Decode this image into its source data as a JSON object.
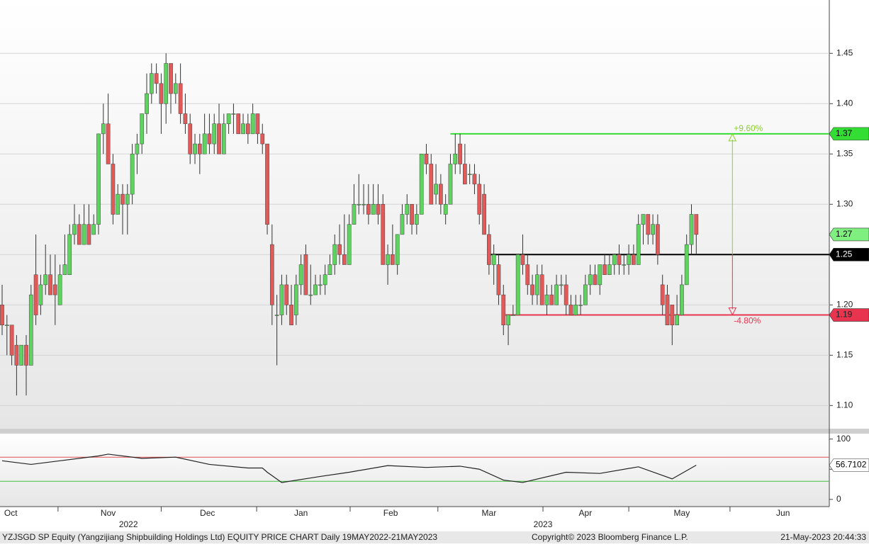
{
  "chart_data": [
    {
      "type": "candlestick",
      "footer_left": "YZJSGD SP Equity (Yangzijiang Shipbuilding Holdings Ltd) EQUITY PRICE CHART  Daily 19MAY2022-21MAY2023",
      "footer_center": "Copyright© 2023 Bloomberg Finance L.P.",
      "footer_right": "21-May-2023 20:44:33",
      "xlim": [
        -0.44,
        171.6
      ],
      "months": [
        {
          "value": 1.8,
          "label": "Oct"
        },
        {
          "value": 22,
          "label": "Nov"
        },
        {
          "value": 42.6,
          "label": "Dec"
        },
        {
          "value": 62,
          "label": "Jan"
        },
        {
          "value": 80.6,
          "label": "Feb"
        },
        {
          "value": 101,
          "label": "Mar"
        },
        {
          "value": 121,
          "label": "Apr"
        },
        {
          "value": 141,
          "label": "May"
        },
        {
          "value": 162,
          "label": "Jun"
        }
      ],
      "years": [
        {
          "value": 26.2,
          "label": "2022"
        },
        {
          "value": 112.2,
          "label": "2023"
        }
      ],
      "month_boundaries": [
        11.6,
        33,
        52.8,
        72.2,
        90.4,
        112.2,
        130,
        151
      ],
      "ylim": [
        1.077,
        1.503
      ],
      "yticks": [
        {
          "value": 1.1,
          "label": "1.10"
        },
        1.15,
        {
          "value": 1.2,
          "label": "1.20"
        },
        1.25,
        {
          "value": 1.3,
          "label": "1.30"
        },
        1.35,
        {
          "value": 1.4,
          "label": "1.40"
        },
        1.45
      ],
      "grid": true,
      "up_color": "#5fd35f",
      "down_color": "#e05a5a",
      "open": [
        1.2,
        1.18,
        1.18,
        1.16,
        1.14,
        1.16,
        1.14,
        1.23,
        1.2,
        1.22,
        1.23,
        1.22,
        1.2,
        1.23,
        1.23,
        1.27,
        1.28,
        1.26,
        1.28,
        1.27,
        1.28,
        1.37,
        1.38,
        1.34,
        1.29,
        1.31,
        1.3,
        1.31,
        1.35,
        1.36,
        1.39,
        1.41,
        1.43,
        1.42,
        1.4,
        1.44,
        1.41,
        1.42,
        1.39,
        1.38,
        1.35,
        1.36,
        1.35,
        1.37,
        1.36,
        1.38,
        1.35,
        1.38,
        1.39,
        1.39,
        1.37,
        1.38,
        1.37,
        1.39,
        1.37,
        1.36,
        1.26,
        1.19,
        1.19,
        1.22,
        1.2,
        1.19,
        1.22,
        1.25,
        1.21,
        1.21,
        1.22,
        1.22,
        1.23,
        1.24,
        1.26,
        1.25,
        1.24,
        1.28,
        1.3,
        1.3,
        1.3,
        1.29,
        1.3,
        1.3,
        1.24,
        1.25,
        1.24,
        1.27,
        1.29,
        1.3,
        1.28,
        1.29,
        1.35,
        1.34,
        1.31,
        1.32,
        1.29,
        1.3,
        1.34,
        1.36,
        1.34,
        1.33,
        1.33,
        1.32,
        1.31,
        1.27,
        1.24,
        1.24,
        1.21,
        1.18,
        1.19,
        1.19,
        1.25,
        1.24,
        1.22,
        1.21,
        1.23,
        1.2,
        1.21,
        1.2,
        1.22,
        1.22,
        1.2,
        1.19,
        1.2,
        1.2,
        1.22,
        1.23,
        1.22,
        1.24,
        1.23,
        1.24,
        1.25,
        1.24,
        1.24,
        1.25,
        1.24,
        1.28,
        1.29,
        1.27,
        1.28,
        1.22,
        1.21,
        1.2,
        1.18,
        1.19,
        1.22,
        1.26,
        1.29
      ],
      "high": [
        1.22,
        1.19,
        1.18,
        1.17,
        1.16,
        1.17,
        1.22,
        1.27,
        1.23,
        1.26,
        1.25,
        1.25,
        1.24,
        1.27,
        1.28,
        1.3,
        1.29,
        1.3,
        1.3,
        1.29,
        1.37,
        1.4,
        1.41,
        1.35,
        1.32,
        1.32,
        1.32,
        1.36,
        1.37,
        1.39,
        1.43,
        1.44,
        1.44,
        1.43,
        1.45,
        1.44,
        1.43,
        1.44,
        1.41,
        1.39,
        1.37,
        1.37,
        1.39,
        1.39,
        1.39,
        1.4,
        1.39,
        1.39,
        1.4,
        1.39,
        1.39,
        1.39,
        1.4,
        1.39,
        1.38,
        1.36,
        1.28,
        1.21,
        1.23,
        1.23,
        1.22,
        1.23,
        1.25,
        1.26,
        1.24,
        1.23,
        1.23,
        1.24,
        1.25,
        1.27,
        1.28,
        1.29,
        1.29,
        1.32,
        1.33,
        1.32,
        1.32,
        1.32,
        1.32,
        1.31,
        1.26,
        1.28,
        1.27,
        1.3,
        1.31,
        1.3,
        1.3,
        1.35,
        1.36,
        1.35,
        1.34,
        1.33,
        1.31,
        1.35,
        1.37,
        1.37,
        1.36,
        1.34,
        1.34,
        1.33,
        1.32,
        1.28,
        1.26,
        1.25,
        1.22,
        1.19,
        1.2,
        1.25,
        1.27,
        1.25,
        1.23,
        1.24,
        1.24,
        1.22,
        1.22,
        1.23,
        1.23,
        1.23,
        1.21,
        1.21,
        1.21,
        1.23,
        1.24,
        1.24,
        1.24,
        1.25,
        1.25,
        1.25,
        1.26,
        1.25,
        1.26,
        1.26,
        1.29,
        1.29,
        1.29,
        1.29,
        1.29,
        1.23,
        1.22,
        1.2,
        1.21,
        1.23,
        1.27,
        1.3,
        1.29
      ],
      "low": [
        1.17,
        1.15,
        1.14,
        1.11,
        1.14,
        1.11,
        1.14,
        1.18,
        1.19,
        1.21,
        1.21,
        1.18,
        1.2,
        1.23,
        1.23,
        1.26,
        1.26,
        1.26,
        1.26,
        1.27,
        1.27,
        1.35,
        1.34,
        1.28,
        1.29,
        1.27,
        1.27,
        1.3,
        1.33,
        1.35,
        1.37,
        1.4,
        1.41,
        1.37,
        1.38,
        1.39,
        1.4,
        1.38,
        1.37,
        1.34,
        1.34,
        1.33,
        1.35,
        1.35,
        1.35,
        1.35,
        1.35,
        1.37,
        1.37,
        1.37,
        1.37,
        1.36,
        1.37,
        1.36,
        1.35,
        1.27,
        1.18,
        1.14,
        1.18,
        1.19,
        1.18,
        1.18,
        1.21,
        1.21,
        1.2,
        1.21,
        1.21,
        1.21,
        1.23,
        1.23,
        1.24,
        1.24,
        1.24,
        1.28,
        1.29,
        1.29,
        1.28,
        1.29,
        1.28,
        1.24,
        1.22,
        1.24,
        1.23,
        1.27,
        1.28,
        1.27,
        1.27,
        1.29,
        1.33,
        1.3,
        1.3,
        1.29,
        1.28,
        1.3,
        1.33,
        1.33,
        1.32,
        1.32,
        1.31,
        1.28,
        1.27,
        1.23,
        1.22,
        1.2,
        1.17,
        1.16,
        1.19,
        1.19,
        1.23,
        1.21,
        1.2,
        1.2,
        1.2,
        1.19,
        1.2,
        1.2,
        1.21,
        1.19,
        1.19,
        1.19,
        1.19,
        1.2,
        1.21,
        1.22,
        1.21,
        1.23,
        1.23,
        1.23,
        1.23,
        1.23,
        1.23,
        1.24,
        1.24,
        1.26,
        1.26,
        1.26,
        1.24,
        1.19,
        1.18,
        1.16,
        1.18,
        1.19,
        1.22,
        1.25,
        1.25
      ],
      "close": [
        1.18,
        1.18,
        1.15,
        1.14,
        1.16,
        1.14,
        1.21,
        1.19,
        1.22,
        1.23,
        1.21,
        1.21,
        1.23,
        1.24,
        1.27,
        1.28,
        1.26,
        1.28,
        1.26,
        1.28,
        1.37,
        1.38,
        1.34,
        1.29,
        1.31,
        1.3,
        1.31,
        1.35,
        1.36,
        1.39,
        1.41,
        1.43,
        1.42,
        1.4,
        1.44,
        1.41,
        1.42,
        1.39,
        1.38,
        1.35,
        1.36,
        1.35,
        1.37,
        1.36,
        1.38,
        1.35,
        1.38,
        1.39,
        1.39,
        1.37,
        1.38,
        1.37,
        1.39,
        1.37,
        1.36,
        1.28,
        1.2,
        1.19,
        1.22,
        1.2,
        1.18,
        1.22,
        1.24,
        1.21,
        1.21,
        1.22,
        1.22,
        1.23,
        1.24,
        1.26,
        1.25,
        1.24,
        1.28,
        1.3,
        1.3,
        1.3,
        1.29,
        1.3,
        1.29,
        1.24,
        1.25,
        1.24,
        1.27,
        1.29,
        1.3,
        1.28,
        1.29,
        1.35,
        1.34,
        1.3,
        1.32,
        1.3,
        1.3,
        1.34,
        1.35,
        1.34,
        1.32,
        1.33,
        1.32,
        1.29,
        1.27,
        1.24,
        1.25,
        1.21,
        1.18,
        1.19,
        1.19,
        1.25,
        1.24,
        1.22,
        1.21,
        1.23,
        1.2,
        1.21,
        1.2,
        1.22,
        1.22,
        1.2,
        1.19,
        1.2,
        1.2,
        1.22,
        1.23,
        1.22,
        1.24,
        1.23,
        1.24,
        1.25,
        1.24,
        1.24,
        1.25,
        1.24,
        1.28,
        1.29,
        1.27,
        1.28,
        1.25,
        1.2,
        1.18,
        1.18,
        1.19,
        1.22,
        1.26,
        1.29,
        1.27
      ],
      "last_tag_color": "#7ff07f",
      "levels": [
        {
          "value": 1.37,
          "start": 93,
          "color": "#33dd33",
          "tag_text": "#000"
        },
        {
          "value": 1.25,
          "start": 101,
          "color": "#000000",
          "tag_text": "#fff"
        },
        {
          "value": 1.19,
          "start": 104,
          "color": "#e8344e",
          "tag_text": "#222"
        }
      ],
      "arrow_x": 151.5,
      "change_labels": [
        {
          "label": "+9.60%",
          "color": "#8ccf2f"
        },
        {
          "label": "-4.80%",
          "color": "#e8344e"
        }
      ]
    },
    {
      "type": "line",
      "x": [
        0,
        6,
        12,
        20,
        22,
        29,
        36,
        43,
        51,
        54,
        55,
        58,
        66,
        72,
        80,
        88,
        95,
        99,
        104,
        108,
        117,
        124,
        132,
        139,
        144
      ],
      "values": [
        64,
        58,
        64,
        72,
        75,
        68,
        70,
        58,
        52,
        52,
        45,
        28,
        38,
        45,
        56,
        53,
        55,
        50,
        32,
        28,
        45,
        43,
        54,
        34,
        56.7102
      ],
      "color": "#222222",
      "ylim": [
        -12,
        109
      ],
      "yticks": [
        0,
        50,
        100
      ],
      "upper": 70,
      "upper_color": "#e05050",
      "lower": 30,
      "lower_color": "#40c040"
    }
  ]
}
